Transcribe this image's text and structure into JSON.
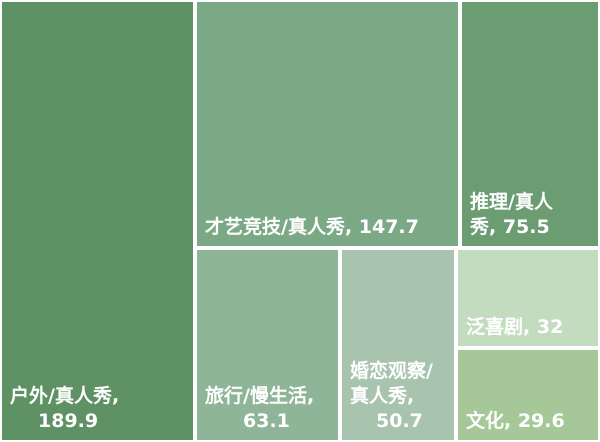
{
  "chart_data": {
    "type": "treemap",
    "title": "",
    "items": [
      {
        "name": "户外/真人秀",
        "value": 189.9,
        "label_lines": [
          "户外/真人秀,",
          "189.9"
        ],
        "color": "#5e9163"
      },
      {
        "name": "才艺竞技/真人秀",
        "value": 147.7,
        "label_lines": [
          "才艺竞技/真人秀, 147.7"
        ],
        "color": "#7ba885"
      },
      {
        "name": "推理/真人秀",
        "value": 75.5,
        "label_lines": [
          "推理/真人",
          "秀, 75.5"
        ],
        "color": "#6b9c72"
      },
      {
        "name": "旅行/慢生活",
        "value": 63.1,
        "label_lines": [
          "旅行/慢生活,",
          "63.1"
        ],
        "color": "#8fb598"
      },
      {
        "name": "婚恋观察/真人秀",
        "value": 50.7,
        "label_lines": [
          "婚恋观察/",
          "真人秀,",
          "50.7"
        ],
        "color": "#a8c4ae"
      },
      {
        "name": "泛喜剧",
        "value": 32,
        "label_lines": [
          "泛喜剧, 32"
        ],
        "color": "#c3dcc0"
      },
      {
        "name": "文化",
        "value": 29.6,
        "label_lines": [
          "文化, 29.6"
        ],
        "color": "#a6c898"
      }
    ]
  }
}
